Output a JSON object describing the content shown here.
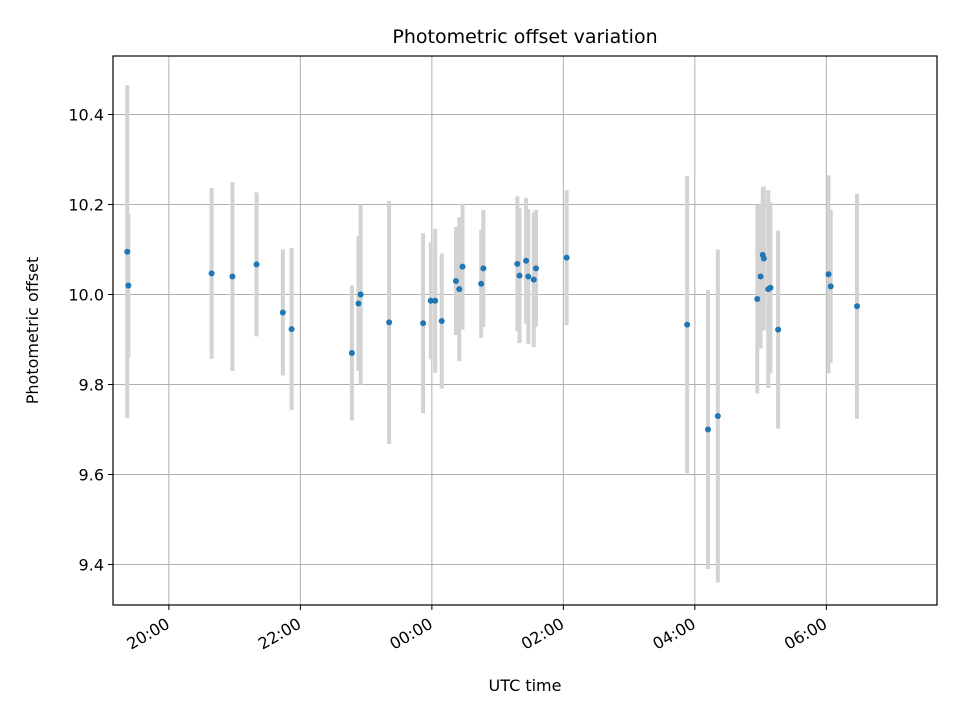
{
  "chart_data": {
    "type": "scatter",
    "title": "Photometric offset variation",
    "xlabel": "UTC time",
    "ylabel": "Photometric offset",
    "x_axis": {
      "kind": "time",
      "min": "19:09",
      "max": "07:41",
      "ticks": [
        "20:00",
        "22:00",
        "00:00",
        "02:00",
        "04:00",
        "06:00"
      ],
      "tick_label_rotation_deg": 30
    },
    "y_axis": {
      "min": 9.31,
      "max": 10.53,
      "ticks": [
        "9.4",
        "9.6",
        "9.8",
        "10.0",
        "10.2",
        "10.4"
      ]
    },
    "grid": true,
    "marker_color": "#1f77b4",
    "errorbar_color": "#d3d3d3",
    "series": [
      {
        "points": [
          {
            "x": "19:22",
            "y": 10.095,
            "err": 0.37
          },
          {
            "x": "19:23",
            "y": 10.02,
            "err": 0.16
          },
          {
            "x": "20:39",
            "y": 10.047,
            "err": 0.19
          },
          {
            "x": "20:58",
            "y": 10.04,
            "err": 0.21
          },
          {
            "x": "21:20",
            "y": 10.067,
            "err": 0.16
          },
          {
            "x": "21:44",
            "y": 9.96,
            "err": 0.14
          },
          {
            "x": "21:52",
            "y": 9.923,
            "err": 0.18
          },
          {
            "x": "22:47",
            "y": 9.87,
            "err": 0.15
          },
          {
            "x": "22:53",
            "y": 9.98,
            "err": 0.15
          },
          {
            "x": "22:55",
            "y": 10.0,
            "err": 0.2
          },
          {
            "x": "23:21",
            "y": 9.938,
            "err": 0.27
          },
          {
            "x": "23:52",
            "y": 9.936,
            "err": 0.2
          },
          {
            "x": "23:59",
            "y": 9.986,
            "err": 0.13
          },
          {
            "x": "00:03",
            "y": 9.986,
            "err": 0.16
          },
          {
            "x": "00:09",
            "y": 9.941,
            "err": 0.15
          },
          {
            "x": "00:22",
            "y": 10.03,
            "err": 0.12
          },
          {
            "x": "00:25",
            "y": 10.012,
            "err": 0.16
          },
          {
            "x": "00:28",
            "y": 10.062,
            "err": 0.14
          },
          {
            "x": "00:45",
            "y": 10.024,
            "err": 0.12
          },
          {
            "x": "00:47",
            "y": 10.058,
            "err": 0.13
          },
          {
            "x": "01:18",
            "y": 10.068,
            "err": 0.15
          },
          {
            "x": "01:20",
            "y": 10.042,
            "err": 0.15
          },
          {
            "x": "01:26",
            "y": 10.075,
            "err": 0.14
          },
          {
            "x": "01:28",
            "y": 10.04,
            "err": 0.15
          },
          {
            "x": "01:33",
            "y": 10.033,
            "err": 0.15
          },
          {
            "x": "01:35",
            "y": 10.058,
            "err": 0.13
          },
          {
            "x": "02:03",
            "y": 10.082,
            "err": 0.15
          },
          {
            "x": "03:53",
            "y": 9.933,
            "err": 0.33
          },
          {
            "x": "04:12",
            "y": 9.7,
            "err": 0.31
          },
          {
            "x": "04:21",
            "y": 9.73,
            "err": 0.37
          },
          {
            "x": "04:57",
            "y": 9.99,
            "err": 0.21
          },
          {
            "x": "05:00",
            "y": 10.04,
            "err": 0.16
          },
          {
            "x": "05:02",
            "y": 10.088,
            "err": 0.15
          },
          {
            "x": "05:03",
            "y": 10.08,
            "err": 0.16
          },
          {
            "x": "05:07",
            "y": 10.012,
            "err": 0.22
          },
          {
            "x": "05:09",
            "y": 10.015,
            "err": 0.19
          },
          {
            "x": "05:16",
            "y": 9.922,
            "err": 0.22
          },
          {
            "x": "06:02",
            "y": 10.045,
            "err": 0.22
          },
          {
            "x": "06:04",
            "y": 10.018,
            "err": 0.17
          },
          {
            "x": "06:28",
            "y": 9.974,
            "err": 0.25
          }
        ]
      }
    ]
  }
}
